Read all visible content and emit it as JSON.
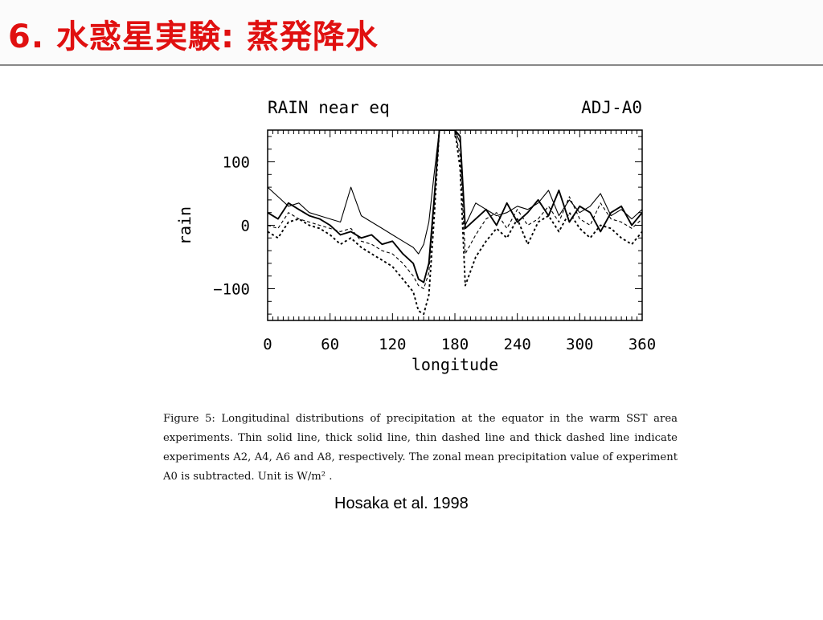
{
  "slide": {
    "title": "6. 水惑星実験: 蒸発降水",
    "title_color": "#e01010",
    "caption": "Figure 5: Longitudinal distributions of precipitation at the equator in the warm SST area experiments. Thin solid line, thick solid line, thin dashed line and thick dashed line indicate experiments A2, A4, A6 and A8, respectively. The zonal mean precipitation value of experiment A0 is subtracted. Unit is W/m² .",
    "credit": "Hosaka et al. 1998"
  },
  "chart_data": {
    "type": "line",
    "title": "RAIN near eq",
    "subtitle": "ADJ-A0",
    "xlabel": "longitude",
    "ylabel": "rain",
    "xlim": [
      0,
      360
    ],
    "ylim": [
      -150,
      150
    ],
    "xticks": [
      0,
      60,
      120,
      180,
      240,
      300,
      360
    ],
    "yticks": [
      -100,
      0,
      100
    ],
    "xtick_labels": [
      "0",
      "60",
      "120",
      "180",
      "240",
      "300",
      "360"
    ],
    "ytick_labels": [
      "−100",
      "0",
      "100"
    ],
    "grid": false,
    "x": [
      0,
      10,
      20,
      30,
      40,
      50,
      60,
      70,
      80,
      90,
      100,
      110,
      120,
      130,
      140,
      145,
      150,
      155,
      160,
      165,
      170,
      175,
      180,
      185,
      190,
      200,
      210,
      220,
      230,
      240,
      250,
      260,
      270,
      280,
      290,
      300,
      310,
      320,
      330,
      340,
      350,
      360
    ],
    "series": [
      {
        "style": "thin-solid",
        "values": [
          60,
          45,
          30,
          35,
          20,
          15,
          10,
          5,
          60,
          15,
          5,
          -5,
          -15,
          -25,
          -35,
          -45,
          -30,
          5,
          80,
          150,
          150,
          150,
          150,
          130,
          0,
          35,
          25,
          15,
          20,
          30,
          25,
          35,
          55,
          15,
          40,
          20,
          30,
          50,
          15,
          25,
          10,
          25
        ]
      },
      {
        "style": "thick-solid",
        "values": [
          20,
          10,
          35,
          25,
          15,
          10,
          0,
          -15,
          -10,
          -20,
          -15,
          -30,
          -25,
          -45,
          -60,
          -85,
          -90,
          -60,
          40,
          150,
          150,
          150,
          150,
          140,
          -5,
          10,
          25,
          0,
          35,
          5,
          20,
          40,
          15,
          55,
          5,
          30,
          20,
          -10,
          20,
          30,
          0,
          20
        ]
      },
      {
        "style": "thin-dashed",
        "values": [
          0,
          -5,
          20,
          10,
          5,
          0,
          -5,
          -10,
          -5,
          -25,
          -30,
          -40,
          -45,
          -60,
          -80,
          -95,
          -100,
          -75,
          30,
          150,
          150,
          150,
          150,
          110,
          -45,
          -15,
          10,
          20,
          -5,
          25,
          0,
          10,
          30,
          5,
          45,
          10,
          0,
          35,
          10,
          5,
          -5,
          10
        ]
      },
      {
        "style": "thick-dashed",
        "values": [
          -10,
          -20,
          5,
          10,
          0,
          -5,
          -15,
          -30,
          -20,
          -35,
          -45,
          -55,
          -65,
          -85,
          -105,
          -135,
          -140,
          -110,
          10,
          150,
          150,
          150,
          150,
          90,
          -95,
          -50,
          -25,
          -5,
          -20,
          10,
          -30,
          5,
          15,
          -10,
          20,
          -5,
          -20,
          0,
          -5,
          -20,
          -30,
          -10
        ]
      }
    ]
  }
}
